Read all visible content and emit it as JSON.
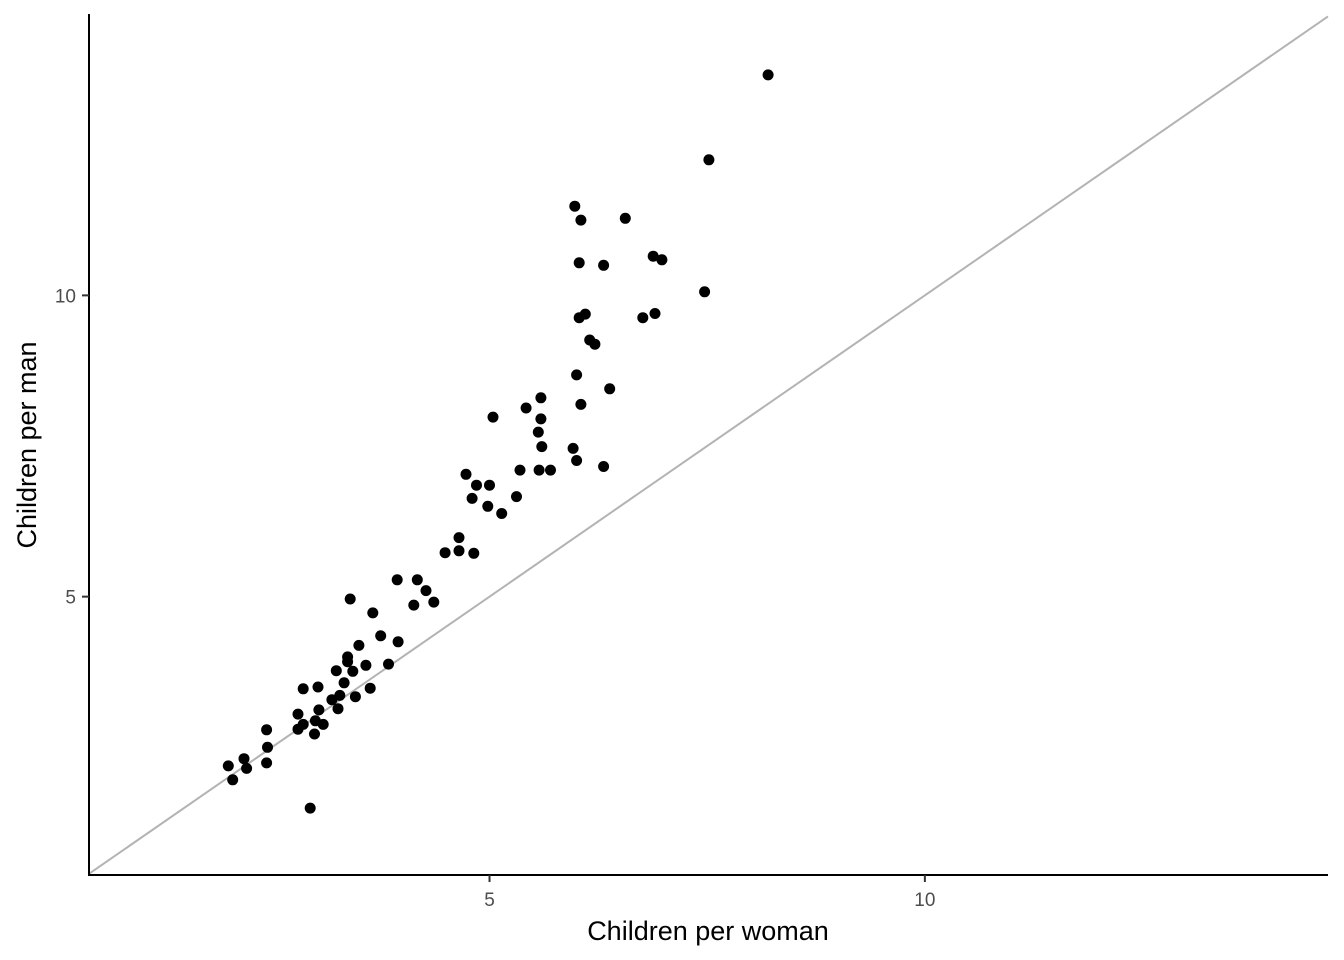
{
  "chart_data": {
    "type": "scatter",
    "xlabel": "Children per woman",
    "ylabel": "Children per man",
    "xlim": [
      0.4,
      14.63
    ],
    "ylim": [
      0.38,
      14.67
    ],
    "x_ticks": [
      5,
      10
    ],
    "y_ticks": [
      5,
      10
    ],
    "grid": false,
    "reference_line": {
      "type": "identity",
      "color": "#b3b3b3"
    },
    "point_color": "#000000",
    "points": [
      [
        8.2,
        13.66
      ],
      [
        7.52,
        12.25
      ],
      [
        5.98,
        11.48
      ],
      [
        6.05,
        11.25
      ],
      [
        6.56,
        11.28
      ],
      [
        6.03,
        10.54
      ],
      [
        6.31,
        10.5
      ],
      [
        6.88,
        10.65
      ],
      [
        6.98,
        10.59
      ],
      [
        7.47,
        10.06
      ],
      [
        6.03,
        9.63
      ],
      [
        6.1,
        9.69
      ],
      [
        6.15,
        9.26
      ],
      [
        6.21,
        9.19
      ],
      [
        6.76,
        9.63
      ],
      [
        6.9,
        9.7
      ],
      [
        6.0,
        8.68
      ],
      [
        6.05,
        8.19
      ],
      [
        6.38,
        8.45
      ],
      [
        5.59,
        8.3
      ],
      [
        5.42,
        8.13
      ],
      [
        5.04,
        7.98
      ],
      [
        5.59,
        7.95
      ],
      [
        5.56,
        7.73
      ],
      [
        5.6,
        7.49
      ],
      [
        5.96,
        7.46
      ],
      [
        6.0,
        7.26
      ],
      [
        6.31,
        7.16
      ],
      [
        5.35,
        7.1
      ],
      [
        5.57,
        7.1
      ],
      [
        5.7,
        7.1
      ],
      [
        4.73,
        7.03
      ],
      [
        4.85,
        6.85
      ],
      [
        5.0,
        6.85
      ],
      [
        4.8,
        6.63
      ],
      [
        4.98,
        6.5
      ],
      [
        5.31,
        6.66
      ],
      [
        5.14,
        6.38
      ],
      [
        4.65,
        5.98
      ],
      [
        4.49,
        5.73
      ],
      [
        4.65,
        5.76
      ],
      [
        4.82,
        5.72
      ],
      [
        3.94,
        5.28
      ],
      [
        4.17,
        5.28
      ],
      [
        4.27,
        5.1
      ],
      [
        4.36,
        4.91
      ],
      [
        4.13,
        4.86
      ],
      [
        3.4,
        4.96
      ],
      [
        3.66,
        4.73
      ],
      [
        3.75,
        4.35
      ],
      [
        3.95,
        4.25
      ],
      [
        3.5,
        4.19
      ],
      [
        3.37,
        4.0
      ],
      [
        3.37,
        3.92
      ],
      [
        3.58,
        3.86
      ],
      [
        3.84,
        3.88
      ],
      [
        3.24,
        3.77
      ],
      [
        3.43,
        3.76
      ],
      [
        3.33,
        3.57
      ],
      [
        3.63,
        3.48
      ],
      [
        2.86,
        3.47
      ],
      [
        3.03,
        3.5
      ],
      [
        3.46,
        3.34
      ],
      [
        3.28,
        3.36
      ],
      [
        3.19,
        3.29
      ],
      [
        3.26,
        3.14
      ],
      [
        3.04,
        3.12
      ],
      [
        2.8,
        3.05
      ],
      [
        3.0,
        2.94
      ],
      [
        3.09,
        2.88
      ],
      [
        2.86,
        2.88
      ],
      [
        2.8,
        2.8
      ],
      [
        2.99,
        2.72
      ],
      [
        2.44,
        2.79
      ],
      [
        2.45,
        2.5
      ],
      [
        2.18,
        2.31
      ],
      [
        2.44,
        2.24
      ],
      [
        2.21,
        2.15
      ],
      [
        2.0,
        2.19
      ],
      [
        2.05,
        1.96
      ],
      [
        2.94,
        1.49
      ]
    ]
  }
}
